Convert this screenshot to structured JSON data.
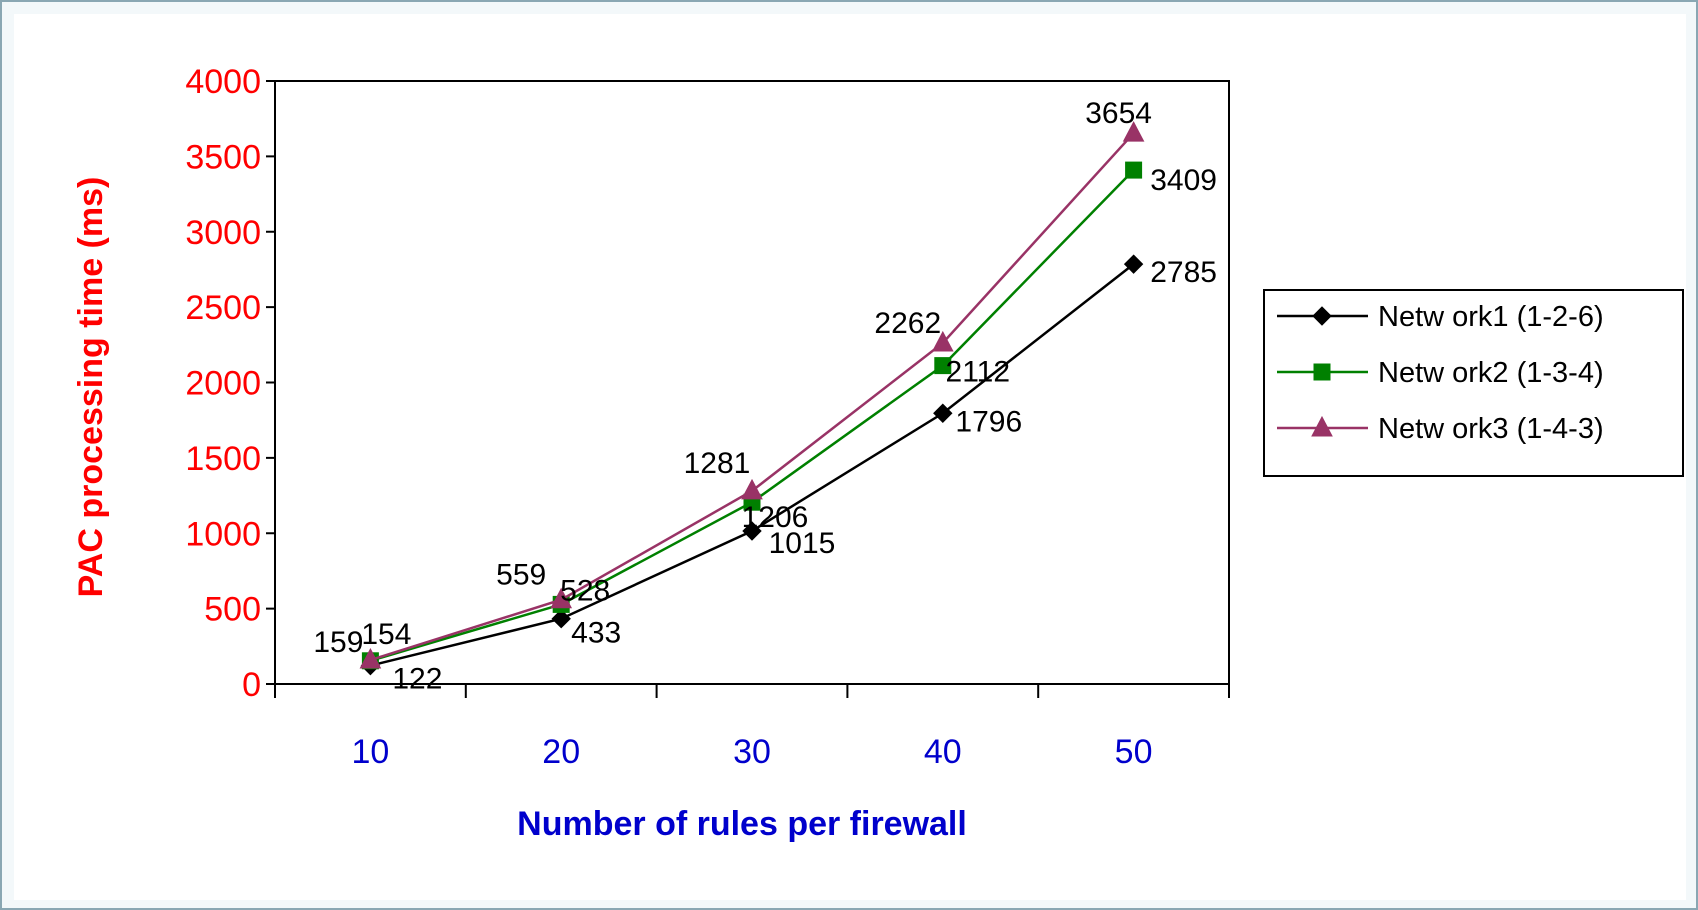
{
  "chart_data": {
    "type": "line",
    "categories": [
      "10",
      "20",
      "30",
      "40",
      "50"
    ],
    "xlabel": "Number of rules per firewall",
    "ylabel": "PAC processing time (ms)",
    "ylim": [
      0,
      4000
    ],
    "yticks": [
      0,
      500,
      1000,
      1500,
      2000,
      2500,
      3000,
      3500,
      4000
    ],
    "grid": false,
    "legend_position": "right",
    "colors": {
      "axis_y_text": "#ff0000",
      "axis_x_text": "#0000cc",
      "series": [
        "#000000",
        "#008000",
        "#993366"
      ]
    },
    "series": [
      {
        "name": "Netw ork1 (1-2-6)",
        "marker": "diamond",
        "values": [
          122,
          433,
          1015,
          1796,
          2785
        ]
      },
      {
        "name": "Netw ork2 (1-3-4)",
        "marker": "square",
        "values": [
          154,
          528,
          1206,
          2112,
          3409
        ]
      },
      {
        "name": "Netw ork3 (1-4-3)",
        "marker": "triangle",
        "values": [
          159,
          559,
          1281,
          2262,
          3654
        ]
      }
    ]
  }
}
